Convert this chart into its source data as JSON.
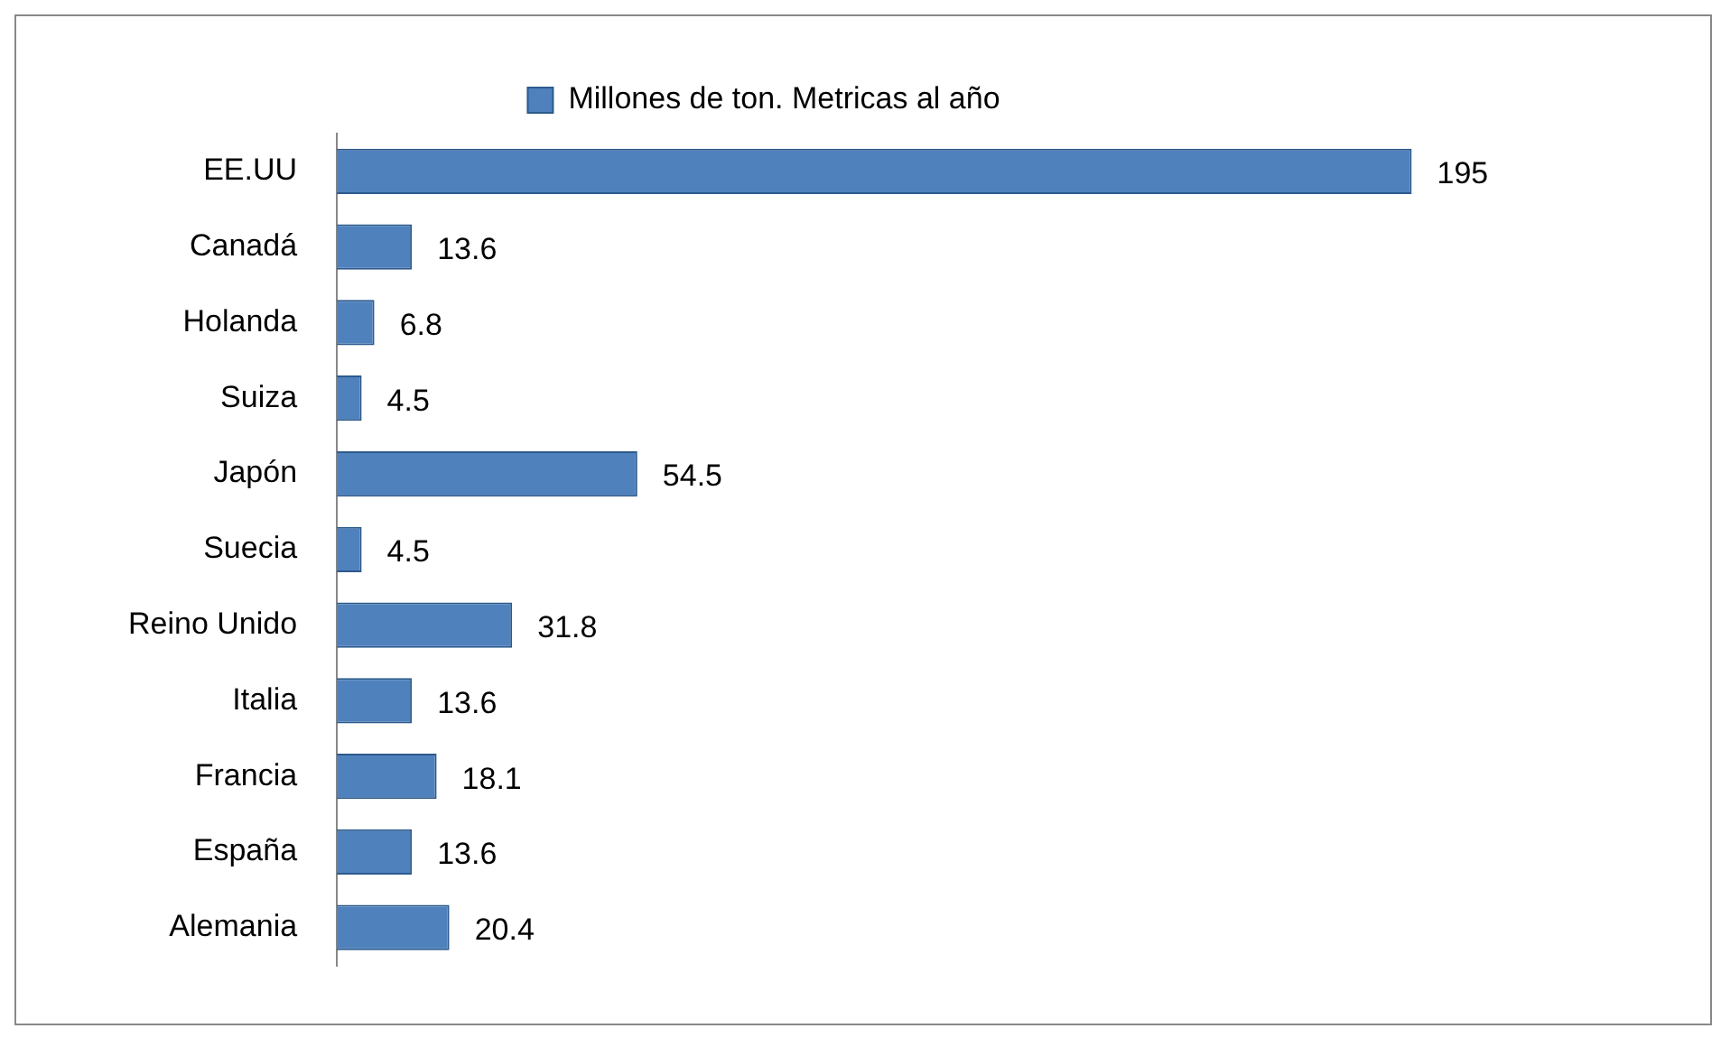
{
  "chart_data": {
    "type": "bar",
    "orientation": "horizontal",
    "categories": [
      "EE.UU",
      "Canadá",
      "Holanda",
      "Suiza",
      "Japón",
      "Suecia",
      "Reino Unido",
      "Italia",
      "Francia",
      "España",
      "Alemania"
    ],
    "series": [
      {
        "name": "Millones de ton. Metricas al año",
        "color": "#4f81bd",
        "values": [
          195,
          13.6,
          6.8,
          4.5,
          54.5,
          4.5,
          31.8,
          13.6,
          18.1,
          13.6,
          20.4
        ]
      }
    ],
    "data_labels": true,
    "legend": "top",
    "tick_labels": "y",
    "grid": false
  }
}
